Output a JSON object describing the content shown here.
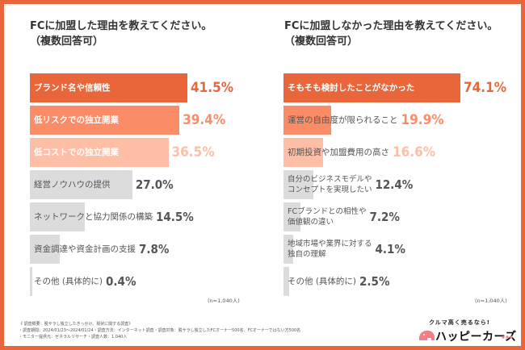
{
  "colors": {
    "border": "#e8663a",
    "level1": "#e8663a",
    "level2": "#fb8c68",
    "level3": "#ffbea6",
    "gray": "#dcdcdc",
    "text_gray": "#555555"
  },
  "chart_data": [
    {
      "type": "bar",
      "orientation": "horizontal",
      "title": "FCに加盟した理由を教えてください。",
      "subtitle": "（複数回答可）",
      "unit": "%",
      "categories": [
        "ブランド名や信頼性",
        "低リスクでの独立開業",
        "低コストでの独立開業",
        "経営ノウハウの提供",
        "ネットワークと協力関係の構築",
        "資金調達や資金計画の支援",
        "その他 (具体的に)"
      ],
      "values": [
        41.5,
        39.4,
        36.5,
        27.0,
        14.5,
        7.8,
        0.4
      ],
      "value_labels": [
        "41.5%",
        "39.4%",
        "36.5%",
        "27.0%",
        "14.5%",
        "7.8%",
        "0.4%"
      ],
      "sample_note": "(n=1,040人)"
    },
    {
      "type": "bar",
      "orientation": "horizontal",
      "title": "FCに加盟しなかった理由を教えてください。",
      "subtitle": "（複数回答可）",
      "unit": "%",
      "categories": [
        "そもそも検討したことがなかった",
        "運営の自由度が限られること",
        "初期投資や加盟費用の高さ",
        "自分のビジネスモデルや\nコンセプトを実現したい",
        "FCブランドとの相性や\n価値観の違い",
        "地域市場や業界に対する\n独自の理解",
        "その他 (具体的に)"
      ],
      "values": [
        74.1,
        19.9,
        16.6,
        12.4,
        7.2,
        4.1,
        2.5
      ],
      "value_labels": [
        "74.1%",
        "19.9%",
        "16.6%",
        "12.4%",
        "7.2%",
        "4.1%",
        "2.5%"
      ],
      "sample_note": "(n=1,040人)"
    }
  ],
  "footer": {
    "summary": "《 調査概要：脱サラし独立したきっかけ、現状に関する調査》",
    "period": "・調査期間：2024/01/23～2024/01/24",
    "method": "・調査方法：インターネット調査",
    "target": "・調査対象：脱サラし独立したFCオーナー500名、FCオーナーではない方500名",
    "provider": "・モニター提供元：ゼネラルリサーチ",
    "count": "・調査人数：1,040人"
  },
  "logo": {
    "tagline": "クルマ高く売るなら!",
    "brand": "ハッピーカーズ"
  }
}
